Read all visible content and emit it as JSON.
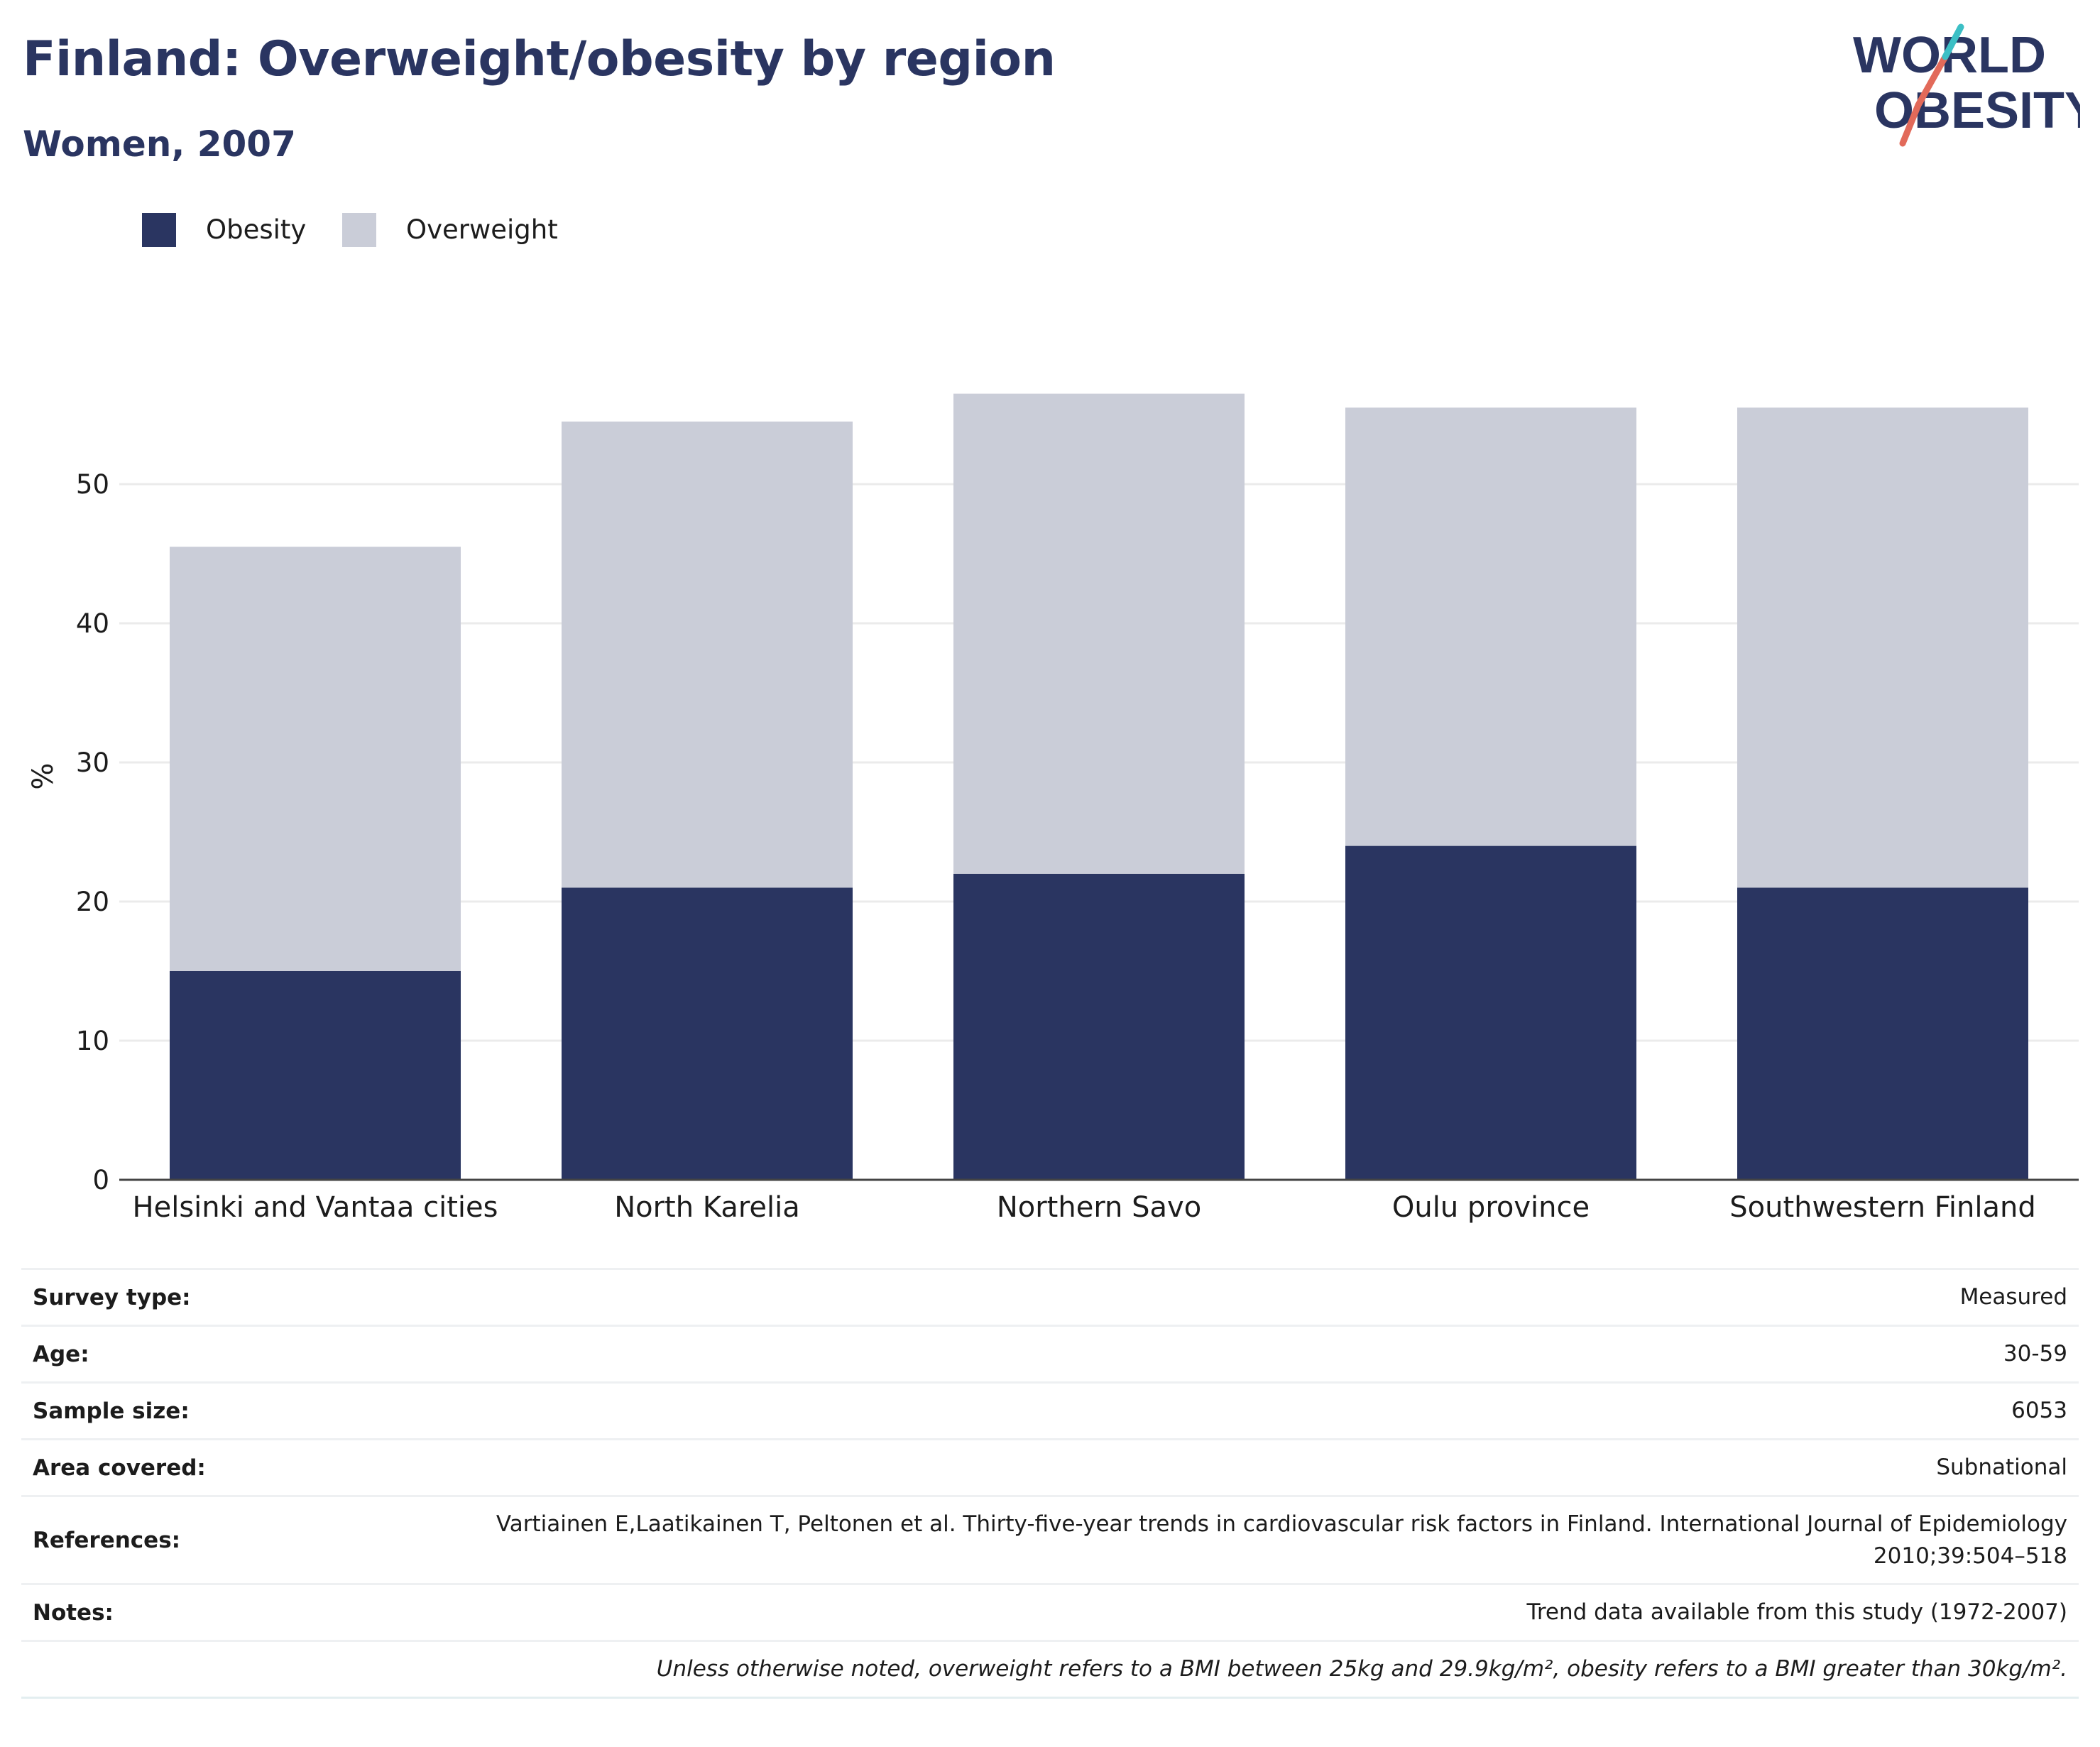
{
  "header": {
    "title": "Finland: Overweight/obesity by region",
    "subtitle": "Women, 2007"
  },
  "logo": {
    "line1": "WORLD",
    "line2": "OBESITY",
    "accent_colors": [
      "#3cbfc5",
      "#e26a5a"
    ],
    "text_color": "#2a3561"
  },
  "chart_data": {
    "type": "bar",
    "stacked": true,
    "categories": [
      "Helsinki and Vantaa cities",
      "North Karelia",
      "Northern Savo",
      "Oulu province",
      "Southwestern Finland"
    ],
    "series": [
      {
        "name": "Obesity",
        "color": "#2a3561",
        "values": [
          15,
          21,
          22,
          24,
          21
        ]
      },
      {
        "name": "Overweight",
        "color": "#cacdd8",
        "values": [
          30.5,
          33.5,
          34.5,
          31.5,
          34.5
        ]
      }
    ],
    "ylabel": "%",
    "xlabel": "",
    "ylim": [
      0,
      60
    ],
    "yticks": [
      0,
      10,
      20,
      30,
      40,
      50
    ],
    "grid": true,
    "legend_position": "top-left"
  },
  "info": [
    {
      "key": "Survey type:",
      "value": "Measured"
    },
    {
      "key": "Age:",
      "value": "30-59"
    },
    {
      "key": "Sample size:",
      "value": "6053"
    },
    {
      "key": "Area covered:",
      "value": "Subnational"
    },
    {
      "key": "References:",
      "value": "Vartiainen E,Laatikainen T, Peltonen et al. Thirty-five-year trends in cardiovascular risk factors in Finland. International Journal of Epidemiology 2010;39:504–518"
    },
    {
      "key": "Notes:",
      "value": "Trend data available from this study (1972-2007)"
    }
  ],
  "footnote": "Unless otherwise noted, overweight refers to a BMI between 25kg and 29.9kg/m², obesity refers to a BMI greater than 30kg/m²."
}
